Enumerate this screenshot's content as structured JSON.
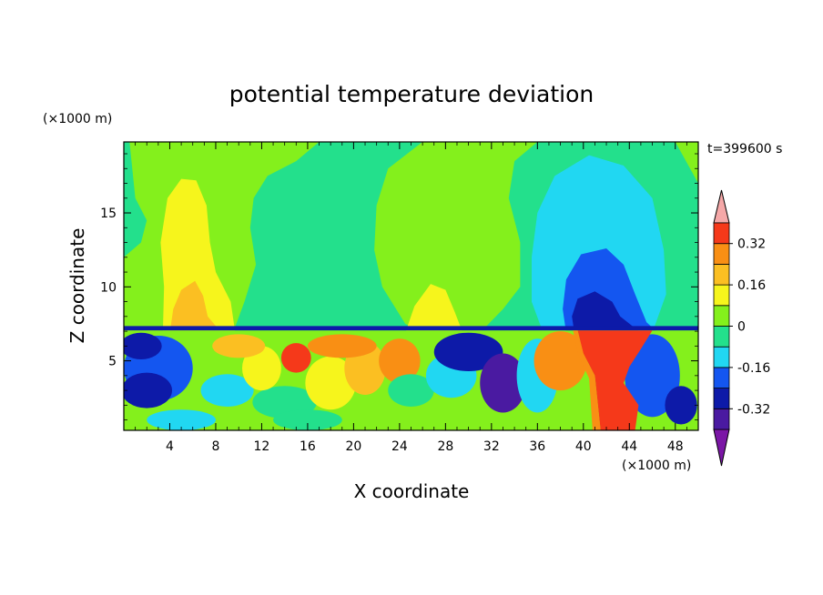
{
  "chart_data": {
    "type": "heatmap",
    "title": "potential temperature deviation",
    "xlabel": "X coordinate",
    "ylabel": "Z coordinate",
    "x_unit": "(×1000 m)",
    "y_unit": "(×1000 m)",
    "time_label": "t=399600 s",
    "xlim": [
      0,
      50
    ],
    "ylim": [
      0.3,
      19.8
    ],
    "xticks": [
      4,
      8,
      12,
      16,
      20,
      24,
      28,
      32,
      36,
      40,
      44,
      48
    ],
    "yticks": [
      5,
      10,
      15
    ],
    "colorbar": {
      "labels": [
        "0.32",
        "0.16",
        "0",
        "-0.16",
        "-0.32"
      ],
      "label_values": [
        0.32,
        0.16,
        0,
        -0.16,
        -0.32
      ],
      "levels": [
        -0.4,
        -0.32,
        -0.24,
        -0.16,
        -0.08,
        0,
        0.08,
        0.16,
        0.24,
        0.32,
        0.4
      ],
      "colors": [
        "#7b16a6",
        "#4a1aa1",
        "#0d1aa8",
        "#1456f0",
        "#21d7f2",
        "#23e08c",
        "#84f01c",
        "#f6f51c",
        "#fbbf22",
        "#f98f14",
        "#f5391a",
        "#f5a8a8"
      ],
      "extend": "both"
    },
    "field_samples": [
      {
        "x": 5.5,
        "z": 14.0,
        "value": 0.14
      },
      {
        "x": 6.0,
        "z": 10.0,
        "value": 0.22
      },
      {
        "x": 27.0,
        "z": 9.5,
        "value": 0.14
      },
      {
        "x": 42.0,
        "z": 14.5,
        "value": -0.14
      },
      {
        "x": 42.0,
        "z": 10.5,
        "value": -0.22
      },
      {
        "x": 42.0,
        "z": 8.6,
        "value": -0.3
      },
      {
        "x": 43.0,
        "z": 3.5,
        "value": 0.45
      },
      {
        "x": 30.0,
        "z": 5.5,
        "value": -0.34
      },
      {
        "x": 18.0,
        "z": 18.0,
        "value": 0.04
      },
      {
        "x": 10.0,
        "z": 3.0,
        "value": -0.14
      }
    ]
  }
}
